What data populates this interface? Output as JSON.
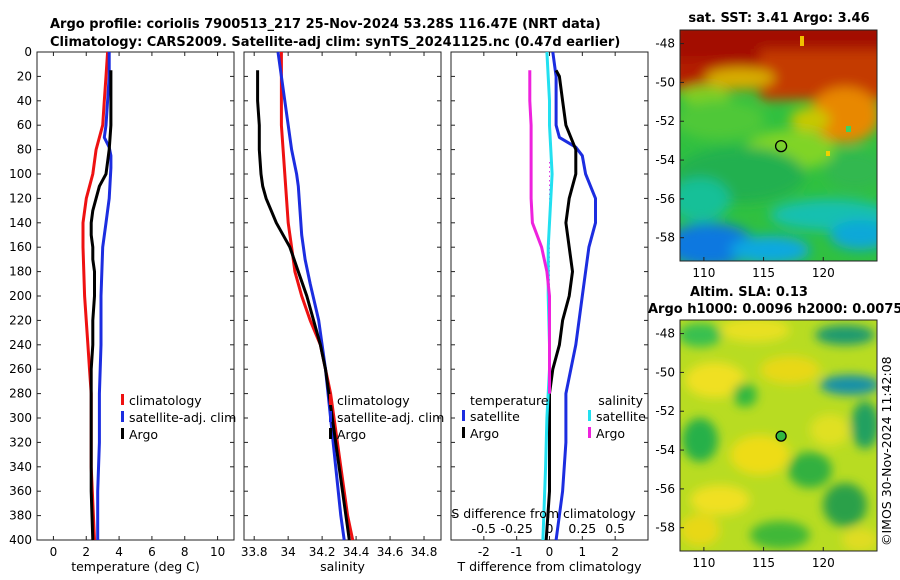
{
  "title_line1": "Argo profile: coriolis 7900513_217 25-Nov-2024 53.28S 116.47E (NRT data)",
  "title_line2": "Climatology: CARS2009. Satellite-adj clim: synTS_20241125.nc (0.47d earlier)",
  "sst_title": "sat. SST: 3.41 Argo: 3.46",
  "sla_title1": "Altim. SLA: 0.13",
  "sla_title2": "Argo h1000: 0.0096 h2000: 0.0075",
  "watermark": "©IMOS 30-Nov-2024 11:42:08",
  "colors": {
    "climatology": "#ee1111",
    "satellite": "#1c2de0",
    "argo": "#000000",
    "sat_salinity": "#22e0f0",
    "argo_salinity": "#ee22dd"
  },
  "chart_data": [
    {
      "name": "temperature",
      "type": "line",
      "xlabel": "temperature (deg C)",
      "ylabel": "",
      "xlim": [
        -1,
        11
      ],
      "ylim": [
        400,
        0
      ],
      "xticks": [
        0,
        2,
        4,
        6,
        8,
        10
      ],
      "yticks": [
        0,
        20,
        40,
        60,
        80,
        100,
        120,
        140,
        160,
        180,
        200,
        220,
        240,
        260,
        280,
        300,
        320,
        340,
        360,
        380,
        400
      ],
      "legend": [
        "climatology",
        "satellite-adj. clim",
        "Argo"
      ],
      "series": [
        {
          "name": "climatology",
          "depth": [
            0,
            20,
            40,
            60,
            70,
            80,
            100,
            120,
            140,
            160,
            200,
            240,
            260,
            280,
            300,
            340,
            400
          ],
          "values": [
            3.3,
            3.2,
            3.1,
            3.0,
            2.8,
            2.6,
            2.4,
            2.0,
            1.8,
            1.8,
            1.9,
            2.1,
            2.2,
            2.3,
            2.3,
            2.3,
            2.5
          ]
        },
        {
          "name": "satellite-adj. clim",
          "depth": [
            0,
            20,
            40,
            60,
            70,
            78,
            85,
            95,
            120,
            140,
            160,
            200,
            240,
            280,
            320,
            360,
            400
          ],
          "values": [
            3.4,
            3.4,
            3.3,
            3.2,
            3.1,
            3.4,
            3.5,
            3.5,
            3.4,
            3.2,
            3.0,
            2.9,
            2.9,
            2.8,
            2.8,
            2.7,
            2.7
          ]
        },
        {
          "name": "Argo",
          "depth": [
            15,
            20,
            40,
            60,
            80,
            100,
            110,
            120,
            130,
            140,
            150,
            160,
            170,
            180,
            200,
            220,
            240,
            260,
            280,
            300,
            320,
            360,
            400
          ],
          "values": [
            3.5,
            3.5,
            3.5,
            3.5,
            3.4,
            3.2,
            2.8,
            2.6,
            2.4,
            2.3,
            2.3,
            2.4,
            2.4,
            2.5,
            2.5,
            2.4,
            2.4,
            2.3,
            2.3,
            2.3,
            2.3,
            2.3,
            2.4
          ]
        }
      ]
    },
    {
      "name": "salinity",
      "type": "line",
      "xlabel": "salinity",
      "ylabel": "",
      "xlim": [
        33.74,
        34.9
      ],
      "ylim": [
        400,
        0
      ],
      "xticks": [
        33.8,
        34,
        34.2,
        34.4,
        34.6,
        34.8
      ],
      "xticklabels": [
        "33.8",
        "34",
        "34.2",
        "34.4",
        "34.6",
        "34.8"
      ],
      "legend": [
        "climatology",
        "satellite-adj. clim",
        "Argo"
      ],
      "series": [
        {
          "name": "climatology",
          "depth": [
            0,
            20,
            40,
            60,
            80,
            100,
            120,
            140,
            160,
            180,
            200,
            220,
            240,
            260,
            280,
            300,
            340,
            380,
            400
          ],
          "values": [
            33.96,
            33.96,
            33.96,
            33.96,
            33.97,
            33.98,
            33.99,
            34.0,
            34.02,
            34.04,
            34.08,
            34.13,
            34.19,
            34.22,
            34.25,
            34.27,
            34.31,
            34.35,
            34.38
          ]
        },
        {
          "name": "satellite-adj. clim",
          "depth": [
            0,
            20,
            40,
            60,
            80,
            100,
            110,
            130,
            150,
            170,
            190,
            220,
            240,
            260,
            300,
            340,
            380,
            400
          ],
          "values": [
            33.94,
            33.96,
            33.98,
            34.0,
            34.02,
            34.05,
            34.06,
            34.07,
            34.08,
            34.1,
            34.13,
            34.18,
            34.2,
            34.22,
            34.25,
            34.28,
            34.31,
            34.33
          ]
        },
        {
          "name": "Argo",
          "depth": [
            15,
            20,
            40,
            60,
            80,
            100,
            110,
            120,
            130,
            140,
            160,
            180,
            200,
            220,
            240,
            260,
            300,
            340,
            380,
            400
          ],
          "values": [
            33.82,
            33.82,
            33.82,
            33.83,
            33.83,
            33.84,
            33.85,
            33.87,
            33.9,
            33.93,
            34.01,
            34.06,
            34.11,
            34.15,
            34.19,
            34.22,
            34.26,
            34.3,
            34.34,
            34.36
          ]
        }
      ]
    },
    {
      "name": "difference",
      "type": "line",
      "xlabel": "T difference from climatology",
      "xlim": [
        -3,
        3
      ],
      "ylim": [
        400,
        0
      ],
      "xticks": [
        -2,
        -1,
        0,
        1,
        2
      ],
      "xticklabels": [
        "-2",
        "-1",
        "0",
        "1",
        "2"
      ],
      "top_axis_label": "S difference from climatology",
      "top_ticklabels": [
        "-0.5",
        "-0.25",
        "0",
        "0.25",
        "0.5"
      ],
      "legend_temperature": {
        "title": "temperature",
        "entries": [
          "satellite",
          "Argo"
        ]
      },
      "legend_salinity": {
        "title": "salinity",
        "entries": [
          "satellite",
          "Argo"
        ]
      },
      "series": [
        {
          "name": "temperature satellite",
          "depth": [
            0,
            20,
            40,
            60,
            70,
            78,
            85,
            100,
            120,
            140,
            160,
            200,
            240,
            280,
            320,
            360,
            400
          ],
          "values": [
            0.1,
            0.2,
            0.2,
            0.2,
            0.3,
            0.8,
            1.0,
            1.1,
            1.4,
            1.4,
            1.2,
            1.0,
            0.8,
            0.5,
            0.5,
            0.4,
            0.2
          ]
        },
        {
          "name": "temperature Argo",
          "depth": [
            15,
            20,
            40,
            60,
            80,
            100,
            120,
            140,
            160,
            180,
            200,
            220,
            240,
            260,
            280,
            300,
            320,
            360,
            400
          ],
          "values": [
            0.2,
            0.3,
            0.4,
            0.5,
            0.8,
            0.8,
            0.6,
            0.5,
            0.6,
            0.7,
            0.6,
            0.4,
            0.3,
            0.1,
            0.0,
            0.0,
            0.0,
            0.0,
            -0.1
          ]
        },
        {
          "name": "salinity satellite",
          "depth": [
            0,
            20,
            40,
            60,
            80,
            100,
            120,
            140,
            160,
            200,
            240,
            260,
            280,
            300,
            340,
            400
          ],
          "values": [
            -0.02,
            -0.01,
            0.0,
            0.0,
            0.01,
            0.02,
            0.01,
            0.0,
            -0.01,
            -0.01,
            0.0,
            0.0,
            -0.01,
            -0.02,
            -0.03,
            -0.05
          ]
        },
        {
          "name": "salinity Argo",
          "depth": [
            15,
            20,
            40,
            60,
            80,
            100,
            120,
            140,
            160,
            180,
            200,
            220,
            240,
            260,
            280
          ],
          "values": [
            -0.15,
            -0.15,
            -0.15,
            -0.14,
            -0.14,
            -0.14,
            -0.14,
            -0.13,
            -0.06,
            -0.02,
            0.0,
            0.0,
            0.0,
            0.0,
            0.0
          ]
        }
      ]
    },
    {
      "name": "satellite SST map",
      "type": "heatmap",
      "xticks": [
        110,
        115,
        120
      ],
      "yticks": [
        -48,
        -50,
        -52,
        -54,
        -56,
        -58
      ],
      "xlim": [
        108,
        124.5
      ],
      "ylim": [
        -59.2,
        -47.3
      ],
      "marker": {
        "lon": 116.47,
        "lat": -53.28
      }
    },
    {
      "name": "altimetry SLA map",
      "type": "heatmap",
      "xticks": [
        110,
        115,
        120
      ],
      "yticks": [
        -48,
        -50,
        -52,
        -54,
        -56,
        -58
      ],
      "xlim": [
        108,
        124.5
      ],
      "ylim": [
        -59.2,
        -47.3
      ],
      "marker": {
        "lon": 116.47,
        "lat": -53.28
      }
    }
  ]
}
